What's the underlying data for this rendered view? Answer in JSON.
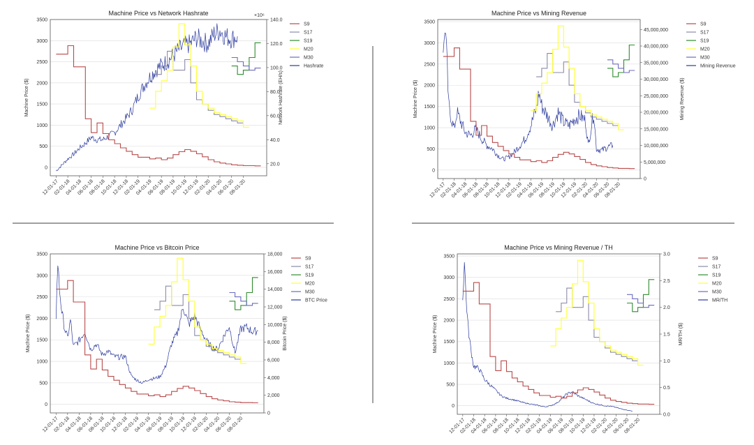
{
  "colors": {
    "S9": "#b84a4a",
    "S17": "#8a8aa8",
    "S19": "#2e8b2e",
    "M20": "#ffff33",
    "M30": "#6b6bbf",
    "secondary": "#2b3a9c",
    "divider": "#666666"
  },
  "x_ticks": [
    "12-01-17",
    "02-01-18",
    "04-01-18",
    "06-01-18",
    "08-01-18",
    "10-01-18",
    "12-01-18",
    "02-01-19",
    "04-01-19",
    "06-01-19",
    "08-01-19",
    "10-01-19",
    "12-01-19",
    "02-01-20",
    "04-01-20",
    "06-01-20",
    "08-01-20"
  ],
  "chart_data": [
    {
      "type": "line",
      "title": "Machine Price vs Network Hashrate",
      "ylabel": "Machine Price ($)",
      "y2label": "Network Hashrate (EH/s)",
      "y2_offset_text": "×10⁶",
      "ylim": [
        -200,
        3500
      ],
      "y2lim": [
        10,
        140
      ],
      "yticks": [
        0,
        500,
        1000,
        1500,
        2000,
        2500,
        3000,
        3500
      ],
      "y2ticks": [
        20,
        40,
        60,
        80,
        100,
        120,
        140
      ],
      "y2_format": "decimal1",
      "legend": [
        "S9",
        "S17",
        "S19",
        "M20",
        "M30",
        "Hashrate"
      ],
      "secondary_name": "Hashrate",
      "secondary_noise": 0.07,
      "secondary": [
        [
          0,
          14
        ],
        [
          1,
          19
        ],
        [
          2,
          24
        ],
        [
          3,
          28
        ],
        [
          4,
          33
        ],
        [
          5,
          37
        ],
        [
          6,
          42
        ],
        [
          7,
          40
        ],
        [
          8,
          40
        ],
        [
          9,
          43
        ],
        [
          10,
          46
        ],
        [
          11,
          52
        ],
        [
          12,
          58
        ],
        [
          13,
          65
        ],
        [
          14,
          76
        ],
        [
          15,
          85
        ],
        [
          16,
          92
        ],
        [
          17,
          98
        ],
        [
          18,
          102
        ],
        [
          19,
          105
        ],
        [
          20,
          110
        ],
        [
          21,
          115
        ],
        [
          22,
          118
        ],
        [
          23,
          120
        ],
        [
          24,
          125
        ],
        [
          25,
          122
        ],
        [
          26,
          120
        ],
        [
          27,
          128
        ],
        [
          28,
          131
        ],
        [
          29,
          126
        ],
        [
          30,
          124
        ],
        [
          31,
          126
        ]
      ]
    },
    {
      "type": "line",
      "title": "Machine Price vs Mining Revenue",
      "ylabel": "Machine Price ($)",
      "y2label": "Mining Revenue ($)",
      "ylim": [
        -200,
        3550
      ],
      "y2lim": [
        0,
        48000000
      ],
      "yticks": [
        0,
        500,
        1000,
        1500,
        2000,
        2500,
        3000,
        3500
      ],
      "y2ticks": [
        0,
        5000000,
        10000000,
        15000000,
        20000000,
        25000000,
        30000000,
        35000000,
        40000000,
        45000000
      ],
      "y2_format": "comma",
      "legend": [
        "S9",
        "S17",
        "S19",
        "M20",
        "M30",
        "Mining Revenue"
      ],
      "secondary_name": "Mining Revenue",
      "secondary_noise": 0.12,
      "secondary": [
        [
          0,
          36000000
        ],
        [
          0.3,
          47000000
        ],
        [
          0.6,
          38000000
        ],
        [
          1,
          22000000
        ],
        [
          1.5,
          18000000
        ],
        [
          2,
          15000000
        ],
        [
          2.5,
          20000000
        ],
        [
          3,
          18000000
        ],
        [
          4,
          14000000
        ],
        [
          5,
          13000000
        ],
        [
          6,
          15000000
        ],
        [
          7,
          12000000
        ],
        [
          8,
          10000000
        ],
        [
          9,
          9000000
        ],
        [
          10,
          7000000
        ],
        [
          11,
          5800000
        ],
        [
          12,
          6500000
        ],
        [
          13,
          8000000
        ],
        [
          14,
          10000000
        ],
        [
          15,
          12000000
        ],
        [
          16,
          16000000
        ],
        [
          17,
          21000000
        ],
        [
          17.5,
          26000000
        ],
        [
          18,
          22000000
        ],
        [
          19,
          19000000
        ],
        [
          20,
          16000000
        ],
        [
          21,
          20000000
        ],
        [
          22,
          17000000
        ],
        [
          23,
          16000000
        ],
        [
          24,
          18000000
        ],
        [
          25,
          19000000
        ],
        [
          26,
          17500000
        ],
        [
          26.5,
          10000000
        ],
        [
          27,
          15000000
        ],
        [
          27.5,
          20000000
        ],
        [
          28,
          9000000
        ],
        [
          29,
          8500000
        ],
        [
          30,
          9500000
        ],
        [
          31,
          10000000
        ]
      ]
    },
    {
      "type": "line",
      "title": "Machine Price vs Bitcoin Price",
      "ylabel": "Machine Price ($)",
      "y2label": "Bitcoin Price ($)",
      "ylim": [
        -200,
        3500
      ],
      "y2lim": [
        0,
        18000
      ],
      "yticks": [
        0,
        500,
        1000,
        1500,
        2000,
        2500,
        3000,
        3500
      ],
      "y2ticks": [
        0,
        2000,
        4000,
        6000,
        8000,
        10000,
        12000,
        14000,
        16000,
        18000
      ],
      "y2_format": "comma",
      "legend": [
        "S9",
        "S17",
        "S19",
        "M20",
        "M30",
        "BTC Price"
      ],
      "secondary_name": "BTC Price",
      "secondary_noise": 0.05,
      "secondary": [
        [
          0,
          11000
        ],
        [
          0.3,
          17000
        ],
        [
          0.6,
          14000
        ],
        [
          1,
          11500
        ],
        [
          1.5,
          9500
        ],
        [
          2,
          8500
        ],
        [
          2.5,
          10500
        ],
        [
          3,
          7500
        ],
        [
          4,
          8200
        ],
        [
          5,
          9200
        ],
        [
          6,
          7200
        ],
        [
          7,
          7800
        ],
        [
          8,
          6600
        ],
        [
          9,
          7000
        ],
        [
          10,
          6400
        ],
        [
          11,
          6300
        ],
        [
          12,
          6400
        ],
        [
          13,
          4200
        ],
        [
          14,
          3700
        ],
        [
          15,
          3400
        ],
        [
          16,
          3800
        ],
        [
          17,
          3900
        ],
        [
          18,
          4100
        ],
        [
          19,
          5300
        ],
        [
          20,
          7800
        ],
        [
          21,
          9000
        ],
        [
          22,
          12000
        ],
        [
          23,
          10000
        ],
        [
          24,
          11000
        ],
        [
          25,
          9500
        ],
        [
          26,
          8200
        ],
        [
          27,
          7400
        ],
        [
          28,
          7200
        ],
        [
          29,
          8600
        ],
        [
          30,
          9800
        ],
        [
          31,
          6800
        ],
        [
          32,
          9500
        ],
        [
          33,
          9700
        ],
        [
          34,
          9200
        ],
        [
          35,
          9300
        ]
      ]
    },
    {
      "type": "line",
      "title": "Machine Price vs Mining Revenue / TH",
      "ylabel": "Machine Price ($)",
      "y2label": "MR/TH ($)",
      "ylim": [
        -200,
        3550
      ],
      "y2lim": [
        0,
        3
      ],
      "yticks": [
        0,
        500,
        1000,
        1500,
        2000,
        2500,
        3000,
        3500
      ],
      "y2ticks": [
        0,
        0.5,
        1,
        1.5,
        2,
        2.5,
        3
      ],
      "y2_format": "decimal1",
      "legend": [
        "S9",
        "S17",
        "S19",
        "M20",
        "M30",
        "MR/TH"
      ],
      "secondary_name": "MR/TH",
      "secondary_noise": 0.06,
      "secondary": [
        [
          0,
          2.2
        ],
        [
          0.3,
          2.85
        ],
        [
          0.6,
          2.2
        ],
        [
          1,
          1.6
        ],
        [
          1.5,
          1.2
        ],
        [
          2,
          0.9
        ],
        [
          3,
          0.85
        ],
        [
          4,
          0.65
        ],
        [
          5,
          0.55
        ],
        [
          6,
          0.45
        ],
        [
          7,
          0.35
        ],
        [
          8,
          0.3
        ],
        [
          9,
          0.28
        ],
        [
          10,
          0.25
        ],
        [
          11,
          0.22
        ],
        [
          12,
          0.2
        ],
        [
          13,
          0.18
        ],
        [
          14,
          0.16
        ],
        [
          15,
          0.14
        ],
        [
          16,
          0.16
        ],
        [
          17,
          0.2
        ],
        [
          18,
          0.28
        ],
        [
          19,
          0.38
        ],
        [
          20,
          0.42
        ],
        [
          21,
          0.35
        ],
        [
          22,
          0.3
        ],
        [
          23,
          0.25
        ],
        [
          24,
          0.2
        ],
        [
          25,
          0.18
        ],
        [
          26,
          0.16
        ],
        [
          27,
          0.15
        ],
        [
          28,
          0.13
        ],
        [
          29,
          0.1
        ],
        [
          30,
          0.08
        ],
        [
          31,
          0.06
        ]
      ]
    }
  ],
  "machine_series": {
    "S9": [
      [
        0,
        2680
      ],
      [
        2,
        2680
      ],
      [
        2,
        2880
      ],
      [
        3,
        2880
      ],
      [
        3,
        2380
      ],
      [
        5,
        2380
      ],
      [
        5,
        1150
      ],
      [
        6,
        1150
      ],
      [
        6,
        820
      ],
      [
        7,
        820
      ],
      [
        7,
        1050
      ],
      [
        8,
        1050
      ],
      [
        8,
        800
      ],
      [
        9,
        800
      ],
      [
        9,
        650
      ],
      [
        10,
        650
      ],
      [
        10,
        560
      ],
      [
        11,
        560
      ],
      [
        11,
        460
      ],
      [
        12,
        460
      ],
      [
        12,
        380
      ],
      [
        13,
        380
      ],
      [
        13,
        300
      ],
      [
        14,
        300
      ],
      [
        14,
        240
      ],
      [
        16,
        240
      ],
      [
        16,
        200
      ],
      [
        17,
        200
      ],
      [
        17,
        220
      ],
      [
        18,
        220
      ],
      [
        18,
        180
      ],
      [
        19,
        180
      ],
      [
        19,
        220
      ],
      [
        20,
        220
      ],
      [
        20,
        300
      ],
      [
        21,
        300
      ],
      [
        21,
        370
      ],
      [
        22,
        370
      ],
      [
        22,
        420
      ],
      [
        23,
        420
      ],
      [
        23,
        380
      ],
      [
        24,
        380
      ],
      [
        24,
        320
      ],
      [
        25,
        320
      ],
      [
        25,
        250
      ],
      [
        26,
        250
      ],
      [
        26,
        180
      ],
      [
        27,
        180
      ],
      [
        27,
        130
      ],
      [
        28,
        130
      ],
      [
        28,
        100
      ],
      [
        29,
        100
      ],
      [
        29,
        80
      ],
      [
        30,
        80
      ],
      [
        30,
        60
      ],
      [
        31,
        60
      ],
      [
        31,
        50
      ],
      [
        32,
        50
      ],
      [
        32,
        40
      ],
      [
        34,
        40
      ],
      [
        34,
        35
      ],
      [
        35,
        35
      ]
    ],
    "S17": [
      [
        17,
        2200
      ],
      [
        18,
        2200
      ],
      [
        18,
        2400
      ],
      [
        19,
        2400
      ],
      [
        19,
        2750
      ],
      [
        20,
        2750
      ],
      [
        20,
        2300
      ],
      [
        21,
        2300
      ],
      [
        21,
        2300
      ],
      [
        22,
        2300
      ],
      [
        22,
        2550
      ],
      [
        23,
        2550
      ],
      [
        23,
        2000
      ],
      [
        24,
        2000
      ],
      [
        24,
        1600
      ],
      [
        25,
        1600
      ],
      [
        25,
        1500
      ],
      [
        26,
        1500
      ],
      [
        26,
        1350
      ],
      [
        27,
        1350
      ],
      [
        27,
        1250
      ],
      [
        28,
        1250
      ],
      [
        28,
        1200
      ],
      [
        29,
        1200
      ],
      [
        29,
        1150
      ],
      [
        30,
        1150
      ],
      [
        30,
        1100
      ],
      [
        31,
        1100
      ],
      [
        31,
        1050
      ],
      [
        32,
        1050
      ]
    ],
    "S19": [
      [
        30,
        2400
      ],
      [
        31,
        2400
      ],
      [
        31,
        2200
      ],
      [
        32,
        2200
      ],
      [
        32,
        2300
      ],
      [
        33,
        2300
      ],
      [
        33,
        2600
      ],
      [
        34,
        2600
      ],
      [
        34,
        2950
      ],
      [
        35,
        2950
      ]
    ],
    "M20": [
      [
        16,
        1400
      ],
      [
        17,
        1400
      ],
      [
        17,
        1800
      ],
      [
        18,
        1800
      ],
      [
        18,
        2050
      ],
      [
        19,
        2050
      ],
      [
        19,
        2300
      ],
      [
        20,
        2300
      ],
      [
        20,
        2850
      ],
      [
        21,
        2850
      ],
      [
        21,
        3400
      ],
      [
        22,
        3400
      ],
      [
        22,
        2900
      ],
      [
        23,
        2900
      ],
      [
        23,
        2400
      ],
      [
        24,
        2400
      ],
      [
        24,
        1800
      ],
      [
        25,
        1800
      ],
      [
        25,
        1500
      ],
      [
        26,
        1500
      ],
      [
        26,
        1400
      ],
      [
        27,
        1400
      ],
      [
        27,
        1300
      ],
      [
        28,
        1300
      ],
      [
        28,
        1250
      ],
      [
        29,
        1250
      ],
      [
        29,
        1200
      ],
      [
        30,
        1200
      ],
      [
        30,
        1150
      ],
      [
        31,
        1150
      ],
      [
        31,
        1100
      ],
      [
        32,
        1100
      ],
      [
        32,
        950
      ],
      [
        33,
        950
      ]
    ],
    "M30": [
      [
        30,
        2600
      ],
      [
        31,
        2600
      ],
      [
        31,
        2500
      ],
      [
        32,
        2500
      ],
      [
        32,
        2400
      ],
      [
        33,
        2400
      ],
      [
        33,
        2300
      ],
      [
        34,
        2300
      ],
      [
        34,
        2350
      ],
      [
        35,
        2350
      ]
    ]
  }
}
